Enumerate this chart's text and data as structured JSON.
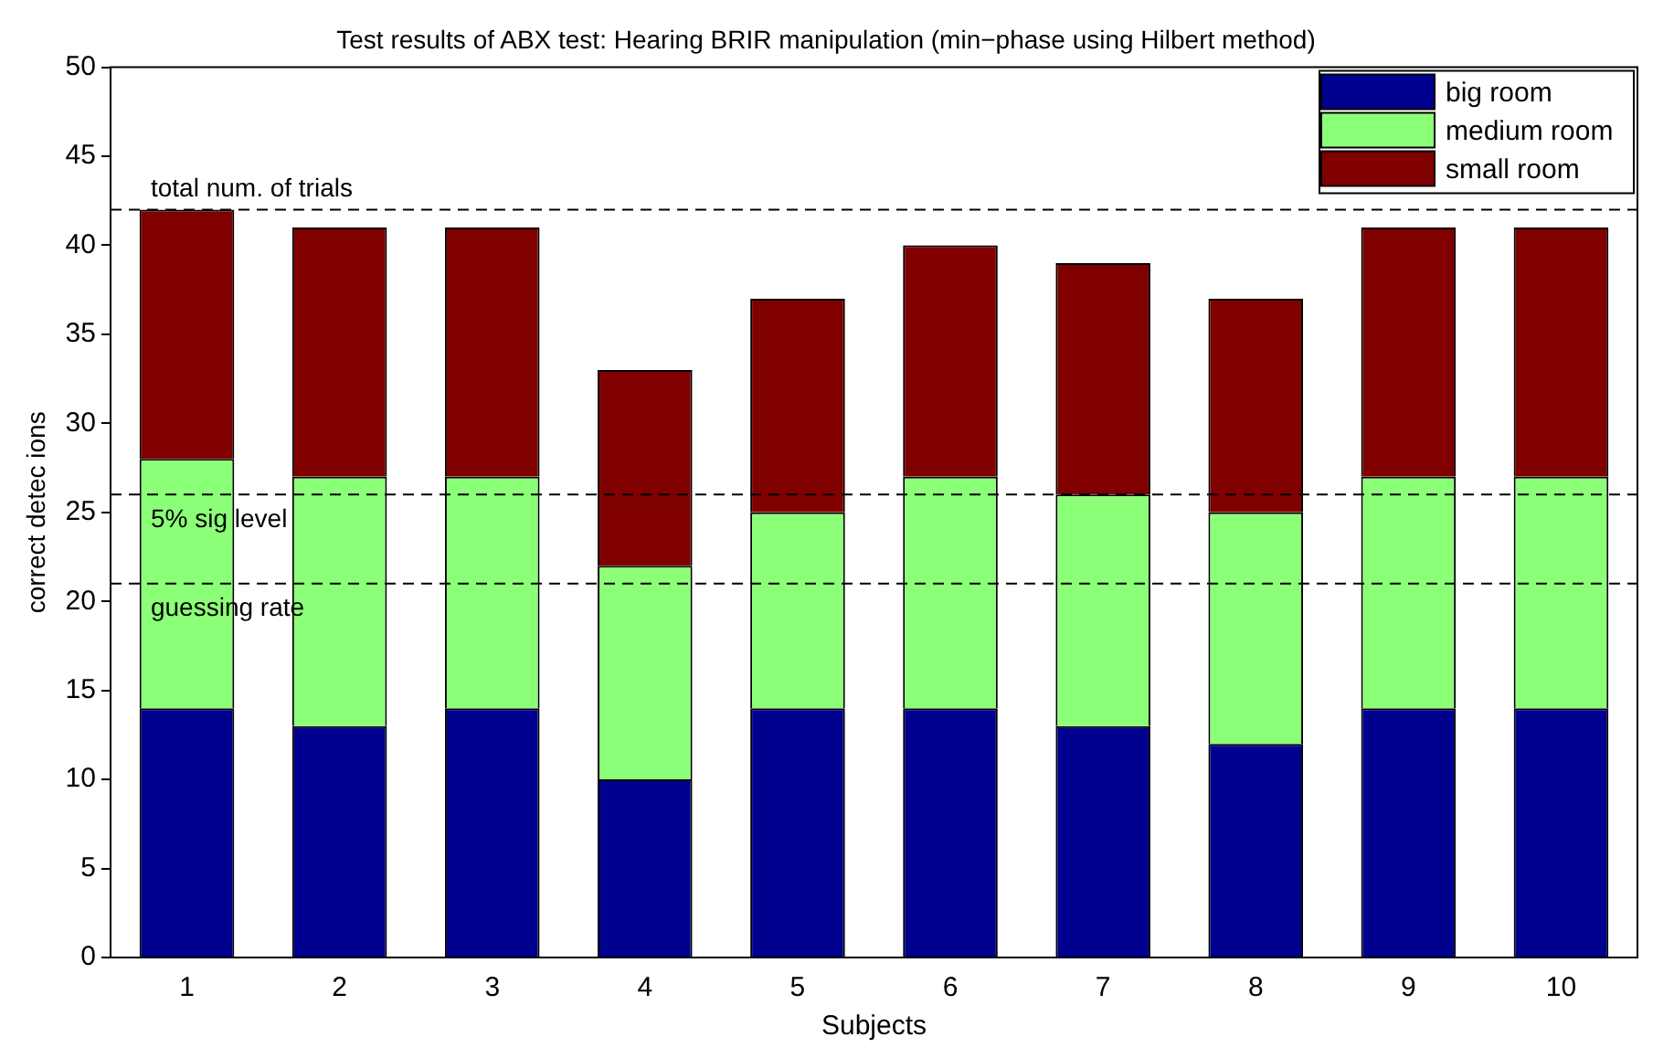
{
  "chart_data": {
    "type": "bar",
    "title": "Test results of ABX test: Hearing BRIR manipulation (min−phase using Hilbert method)",
    "xlabel": "Subjects",
    "ylabel": "correct detec ions",
    "categories": [
      "1",
      "2",
      "3",
      "4",
      "5",
      "6",
      "7",
      "8",
      "9",
      "10"
    ],
    "stacked": true,
    "series": [
      {
        "name": "big room",
        "color": "#00008f",
        "values": [
          14,
          13,
          14,
          10,
          14,
          14,
          13,
          12,
          14,
          14
        ]
      },
      {
        "name": "medium room",
        "color": "#8cff78",
        "values": [
          14,
          14,
          13,
          12,
          11,
          13,
          13,
          13,
          13,
          13
        ]
      },
      {
        "name": "small room",
        "color": "#800000",
        "values": [
          14,
          14,
          14,
          11,
          12,
          13,
          13,
          12,
          14,
          14
        ]
      }
    ],
    "ylim": [
      0,
      50
    ],
    "yticks": [
      0,
      5,
      10,
      15,
      20,
      25,
      30,
      35,
      40,
      45,
      50
    ],
    "ref_lines": [
      {
        "axis": "y",
        "value": 42,
        "label": "total num. of trials",
        "line_style": "dashed",
        "color": "#000000"
      },
      {
        "axis": "y",
        "value": 26,
        "label": "5% sig level",
        "line_style": "dashed",
        "color": "#000000"
      },
      {
        "axis": "y",
        "value": 21,
        "label": "guessing rate",
        "line_style": "dashed",
        "color": "#000000"
      }
    ],
    "legend": "top right",
    "grid": false
  }
}
